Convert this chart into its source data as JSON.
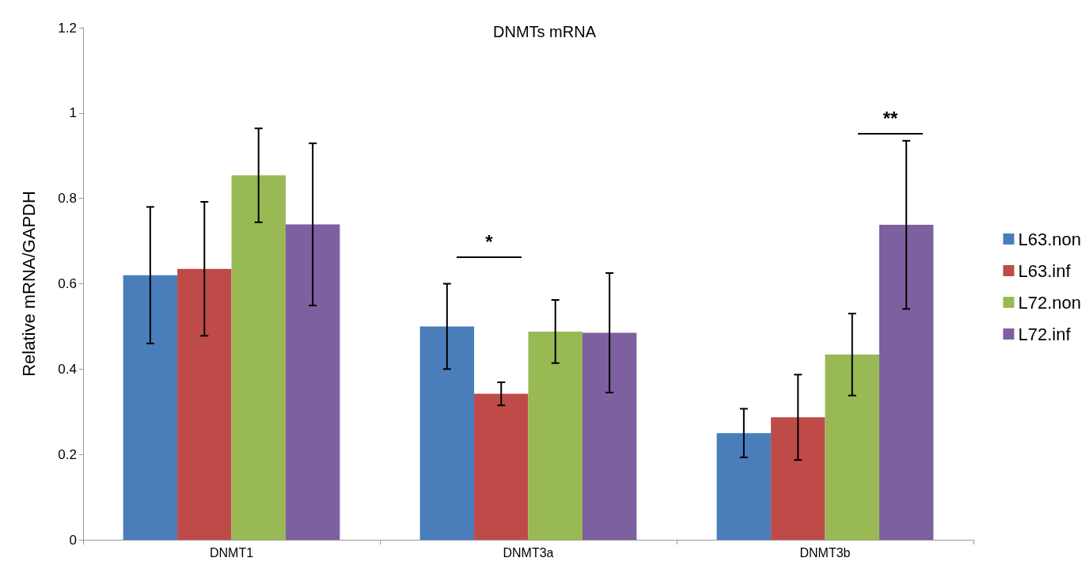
{
  "chart_data": {
    "type": "bar",
    "title": "DNMTs mRNA",
    "ylabel": "Relative mRNA/GAPDH",
    "categories": [
      "DNMT1",
      "DNMT3a",
      "DNMT3b"
    ],
    "series": [
      {
        "name": "L63.non",
        "color": "#4a7ebb",
        "values": [
          0.62,
          0.5,
          0.25
        ],
        "errors": [
          0.16,
          0.1,
          0.057
        ]
      },
      {
        "name": "L63.inf",
        "color": "#be4b48",
        "values": [
          0.635,
          0.342,
          0.287
        ],
        "errors": [
          0.157,
          0.027,
          0.1
        ]
      },
      {
        "name": "L72.non",
        "color": "#98b954",
        "values": [
          0.854,
          0.488,
          0.434
        ],
        "errors": [
          0.11,
          0.074,
          0.096
        ]
      },
      {
        "name": "L72.inf",
        "color": "#7d60a0",
        "values": [
          0.739,
          0.485,
          0.738
        ],
        "errors": [
          0.19,
          0.14,
          0.197
        ]
      }
    ],
    "annotations": [
      "*",
      "**"
    ],
    "ylim": [
      0,
      1.2
    ],
    "yticks": [
      0,
      0.2,
      0.4,
      0.6,
      0.8,
      1,
      1.2
    ],
    "grid": false,
    "legend": "right"
  }
}
